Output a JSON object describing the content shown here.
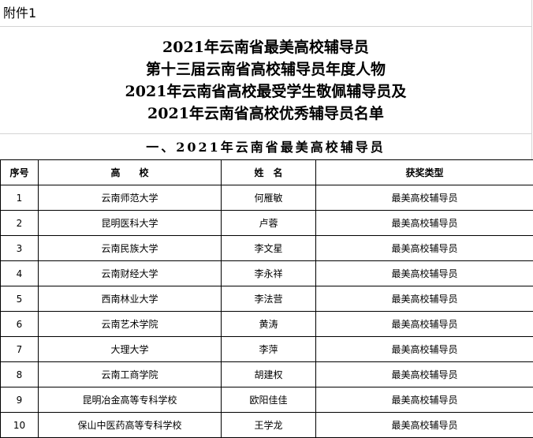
{
  "attachment_label": "附件1",
  "title_lines": [
    "2021年云南省最美高校辅导员",
    "第十三届云南省高校辅导员年度人物",
    "2021年云南省高校最受学生敬佩辅导员及",
    "2021年云南省高校优秀辅导员名单"
  ],
  "section_title": "一、2021年云南省最美高校辅导员",
  "table": {
    "headers": [
      "序号",
      "高　　校",
      "姓　名",
      "获奖类型"
    ],
    "rows": [
      [
        "1",
        "云南师范大学",
        "何雁敏",
        "最美高校辅导员"
      ],
      [
        "2",
        "昆明医科大学",
        "卢蓉",
        "最美高校辅导员"
      ],
      [
        "3",
        "云南民族大学",
        "李文星",
        "最美高校辅导员"
      ],
      [
        "4",
        "云南财经大学",
        "李永祥",
        "最美高校辅导员"
      ],
      [
        "5",
        "西南林业大学",
        "李法营",
        "最美高校辅导员"
      ],
      [
        "6",
        "云南艺术学院",
        "黄涛",
        "最美高校辅导员"
      ],
      [
        "7",
        "大理大学",
        "李萍",
        "最美高校辅导员"
      ],
      [
        "8",
        "云南工商学院",
        "胡建权",
        "最美高校辅导员"
      ],
      [
        "9",
        "昆明冶金高等专科学校",
        "欧阳佳佳",
        "最美高校辅导员"
      ],
      [
        "10",
        "保山中医药高等专科学校",
        "王学龙",
        "最美高校辅导员"
      ]
    ]
  }
}
